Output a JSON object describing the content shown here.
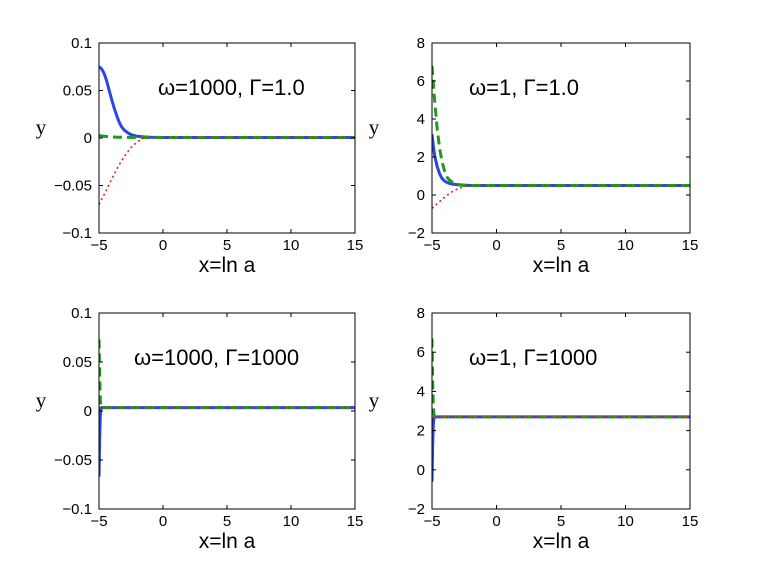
{
  "chart_data": [
    {
      "type": "line",
      "annotation": "ω=1000, Γ=1.0",
      "xlabel": "x=ln a",
      "ylabel": "y",
      "xlim": [
        -5,
        15
      ],
      "ylim": [
        -0.1,
        0.1
      ],
      "xticks": [
        "−5",
        "0",
        "5",
        "10",
        "15"
      ],
      "yticks": [
        "−0.1",
        "−0.05",
        "0",
        "0.05",
        "0.1"
      ],
      "xtick_values": [
        -5,
        0,
        5,
        10,
        15
      ],
      "ytick_values": [
        -0.1,
        -0.05,
        0,
        0.05,
        0.1
      ],
      "grid": false,
      "series": [
        {
          "style": "solid",
          "color": "#2b45e6",
          "x": [
            -5,
            -4.8,
            -4.6,
            -4.4,
            -4.2,
            -4.0,
            -3.8,
            -3.6,
            -3.4,
            -3.2,
            -3.0,
            -2.7,
            -2.4,
            -2.0,
            -1.5,
            -1.0,
            0,
            15
          ],
          "y": [
            0.075,
            0.073,
            0.068,
            0.06,
            0.05,
            0.04,
            0.031,
            0.023,
            0.016,
            0.011,
            0.008,
            0.005,
            0.003,
            0.0018,
            0.0012,
            0.0008,
            0.0005,
            0.0005
          ]
        },
        {
          "style": "dashed",
          "color": "#1e9a1e",
          "x": [
            -5,
            -4.5,
            -4.0,
            -3.5,
            -3.0,
            -2.5,
            -2.0,
            0,
            15
          ],
          "y": [
            0.0025,
            0.0017,
            0.0011,
            0.0008,
            0.0007,
            0.0006,
            0.0005,
            0.0005,
            0.0005
          ]
        },
        {
          "style": "dotted",
          "color": "#e02020",
          "x": [
            -5,
            -4.5,
            -4.0,
            -3.5,
            -3.0,
            -2.5,
            -2.0,
            -1.5,
            0,
            15
          ],
          "y": [
            -0.07,
            -0.057,
            -0.043,
            -0.03,
            -0.019,
            -0.01,
            -0.004,
            0.0,
            0.0005,
            0.0005
          ]
        }
      ]
    },
    {
      "type": "line",
      "annotation": "ω=1, Γ=1.0",
      "xlabel": "x=ln a",
      "ylabel": "y",
      "xlim": [
        -5,
        15
      ],
      "ylim": [
        -2,
        8
      ],
      "xticks": [
        "−5",
        "0",
        "5",
        "10",
        "15"
      ],
      "yticks": [
        "−2",
        "0",
        "2",
        "4",
        "6",
        "8"
      ],
      "xtick_values": [
        -5,
        0,
        5,
        10,
        15
      ],
      "ytick_values": [
        -2,
        0,
        2,
        4,
        6,
        8
      ],
      "grid": false,
      "series": [
        {
          "style": "solid",
          "color": "#2b45e6",
          "x": [
            -5,
            -4.9,
            -4.8,
            -4.6,
            -4.4,
            -4.2,
            -4.0,
            -3.7,
            -3.4,
            -3.0,
            -2.5,
            -2.0,
            15
          ],
          "y": [
            3.2,
            2.6,
            2.1,
            1.5,
            1.1,
            0.85,
            0.72,
            0.62,
            0.57,
            0.54,
            0.52,
            0.5,
            0.5
          ]
        },
        {
          "style": "dashed",
          "color": "#1e9a1e",
          "x": [
            -5,
            -4.8,
            -4.6,
            -4.4,
            -4.2,
            -4.0,
            -3.8,
            -3.5,
            -3.2,
            -2.8,
            -2.5,
            15
          ],
          "y": [
            6.8,
            5.0,
            3.5,
            2.4,
            1.7,
            1.2,
            0.9,
            0.7,
            0.6,
            0.53,
            0.5,
            0.5
          ]
        },
        {
          "style": "dotted",
          "color": "#e02020",
          "x": [
            -5,
            -4.5,
            -4.0,
            -3.5,
            -3.0,
            -2.5,
            -2.0,
            15
          ],
          "y": [
            -0.7,
            -0.4,
            -0.1,
            0.15,
            0.33,
            0.45,
            0.5,
            0.5
          ]
        }
      ]
    },
    {
      "type": "line",
      "annotation": "ω=1000, Γ=1000",
      "xlabel": "x=ln a",
      "ylabel": "y",
      "xlim": [
        -5,
        15
      ],
      "ylim": [
        -0.1,
        0.1
      ],
      "xticks": [
        "−5",
        "0",
        "5",
        "10",
        "15"
      ],
      "yticks": [
        "−0.1",
        "−0.05",
        "0",
        "0.05",
        "0.1"
      ],
      "xtick_values": [
        -5,
        0,
        5,
        10,
        15
      ],
      "ytick_values": [
        -0.1,
        -0.05,
        0,
        0.05,
        0.1
      ],
      "grid": false,
      "series": [
        {
          "style": "solid",
          "color": "#2b45e6",
          "x": [
            -5,
            -4.95,
            -4.9,
            -4.85,
            -4.8,
            -4.7,
            15
          ],
          "y": [
            -0.067,
            -0.03,
            -0.005,
            0.003,
            0.0035,
            0.0035,
            0.0035
          ]
        },
        {
          "style": "dashed",
          "color": "#1e9a1e",
          "x": [
            -5,
            -4.95,
            -4.9,
            -4.85,
            -4.8,
            15
          ],
          "y": [
            0.073,
            0.04,
            0.012,
            0.004,
            0.0035,
            0.0035
          ]
        },
        {
          "style": "dotted",
          "color": "#e02020",
          "x": [
            -5,
            -4.9,
            -4.8,
            15
          ],
          "y": [
            0.003,
            0.0035,
            0.0035,
            0.0035
          ]
        }
      ]
    },
    {
      "type": "line",
      "annotation": "ω=1, Γ=1000",
      "xlabel": "x=ln a",
      "ylabel": "y",
      "xlim": [
        -5,
        15
      ],
      "ylim": [
        -2,
        8
      ],
      "xticks": [
        "−5",
        "0",
        "5",
        "10",
        "15"
      ],
      "yticks": [
        "−2",
        "0",
        "2",
        "4",
        "6",
        "8"
      ],
      "xtick_values": [
        -5,
        0,
        5,
        10,
        15
      ],
      "ytick_values": [
        -2,
        0,
        2,
        4,
        6,
        8
      ],
      "grid": false,
      "series": [
        {
          "style": "solid",
          "color": "#2b45e6",
          "x": [
            -5,
            -4.95,
            -4.9,
            -4.85,
            -4.8,
            -4.7,
            15
          ],
          "y": [
            -0.6,
            1.2,
            2.3,
            2.65,
            2.7,
            2.7,
            2.7
          ]
        },
        {
          "style": "dashed",
          "color": "#1e9a1e",
          "x": [
            -5,
            -4.95,
            -4.9,
            -4.85,
            -4.8,
            -4.7,
            15
          ],
          "y": [
            6.7,
            4.6,
            3.3,
            2.85,
            2.72,
            2.7,
            2.7
          ]
        },
        {
          "style": "dotted",
          "color": "#e02020",
          "x": [
            -5,
            -4.9,
            -4.8,
            15
          ],
          "y": [
            2.6,
            2.7,
            2.7,
            2.7
          ]
        }
      ]
    }
  ]
}
